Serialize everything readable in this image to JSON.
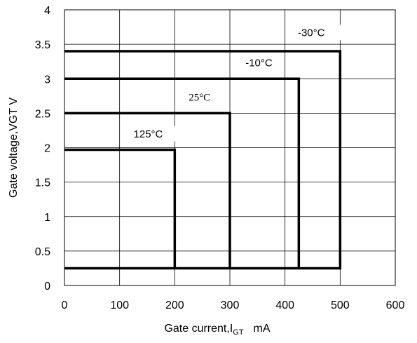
{
  "chart_data": {
    "type": "line",
    "xlabel": "Gate current,I",
    "xlabel_sub": "GT",
    "xlabel_unit": "mA",
    "ylabel": "Gate voltage,VGT  V",
    "xlim": [
      0,
      600
    ],
    "ylim": [
      0,
      4
    ],
    "x_ticks": [
      0,
      100,
      200,
      300,
      400,
      500,
      600
    ],
    "x_tick_labels": [
      "0",
      "100",
      "200",
      "300",
      "400",
      "500",
      "600"
    ],
    "y_ticks": [
      0,
      0.5,
      1,
      1.5,
      2,
      2.5,
      3,
      3.5,
      4
    ],
    "y_tick_labels": [
      "0",
      "0.5",
      "1",
      "1.5",
      "2",
      "2.5",
      "3",
      "3.5",
      "4"
    ],
    "grid": true,
    "series": [
      {
        "name": "-30°C",
        "points": [
          [
            0,
            3.4
          ],
          [
            500,
            3.4
          ],
          [
            500,
            0.25
          ],
          [
            0,
            0.25
          ]
        ]
      },
      {
        "name": "-10°C",
        "points": [
          [
            0,
            3.0
          ],
          [
            425,
            3.0
          ],
          [
            425,
            0.25
          ]
        ]
      },
      {
        "name": "25°C",
        "points": [
          [
            0,
            2.5
          ],
          [
            300,
            2.5
          ],
          [
            300,
            0.25
          ]
        ]
      },
      {
        "name": "125°C",
        "points": [
          [
            0,
            1.97
          ],
          [
            200,
            1.97
          ],
          [
            200,
            0.25
          ]
        ]
      }
    ],
    "colors": {
      "line": "#000000",
      "grid": "#000000"
    }
  }
}
